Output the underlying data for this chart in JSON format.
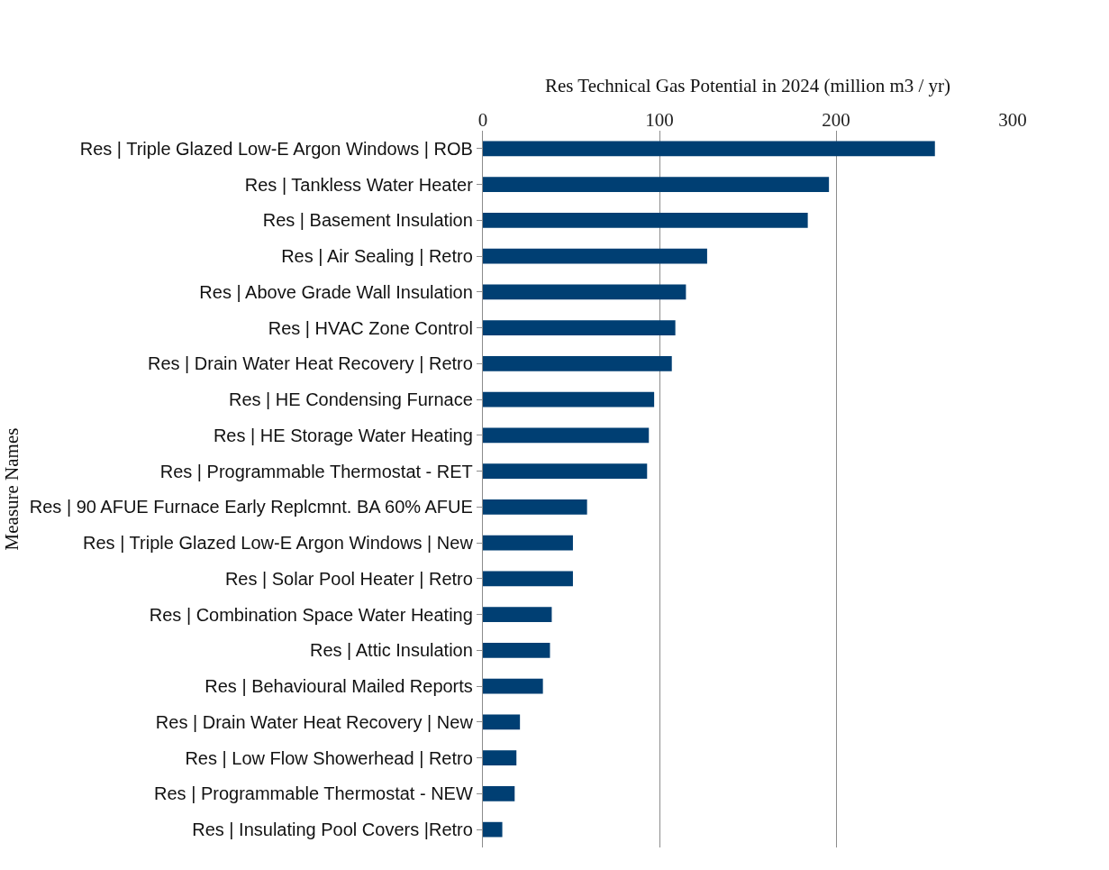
{
  "chart_data": {
    "type": "bar",
    "orientation": "horizontal",
    "xlabel": "Res Technical Gas Potential in 2024 (million m3 / yr)",
    "ylabel": "Measure Names",
    "categories": [
      "Res | Triple Glazed Low-E Argon Windows | ROB",
      "Res | Tankless Water Heater",
      "Res | Basement Insulation",
      "Res | Air Sealing | Retro",
      "Res | Above Grade Wall Insulation",
      "Res | HVAC Zone Control",
      "Res | Drain Water Heat Recovery | Retro",
      "Res | HE Condensing Furnace",
      "Res | HE Storage Water Heating",
      "Res | Programmable Thermostat - RET",
      "Res | 90 AFUE Furnace Early Replcmnt. BA 60% AFUE",
      "Res | Triple Glazed Low-E Argon Windows | New",
      "Res | Solar Pool Heater | Retro",
      "Res | Combination Space Water Heating",
      "Res | Attic Insulation",
      "Res | Behavioural Mailed Reports",
      "Res | Drain Water Heat Recovery | New",
      "Res | Low Flow Showerhead | Retro",
      "Res | Programmable Thermostat - NEW",
      "Res | Insulating Pool Covers |Retro"
    ],
    "values": [
      256,
      196,
      184,
      127,
      115,
      109,
      107,
      97,
      94,
      93,
      59,
      51,
      51,
      39,
      38,
      34,
      21,
      19,
      18,
      11
    ],
    "color": "#003f73",
    "xlim": [
      0,
      300
    ],
    "xticks": [
      0,
      100,
      200,
      300
    ],
    "grid": "x"
  }
}
